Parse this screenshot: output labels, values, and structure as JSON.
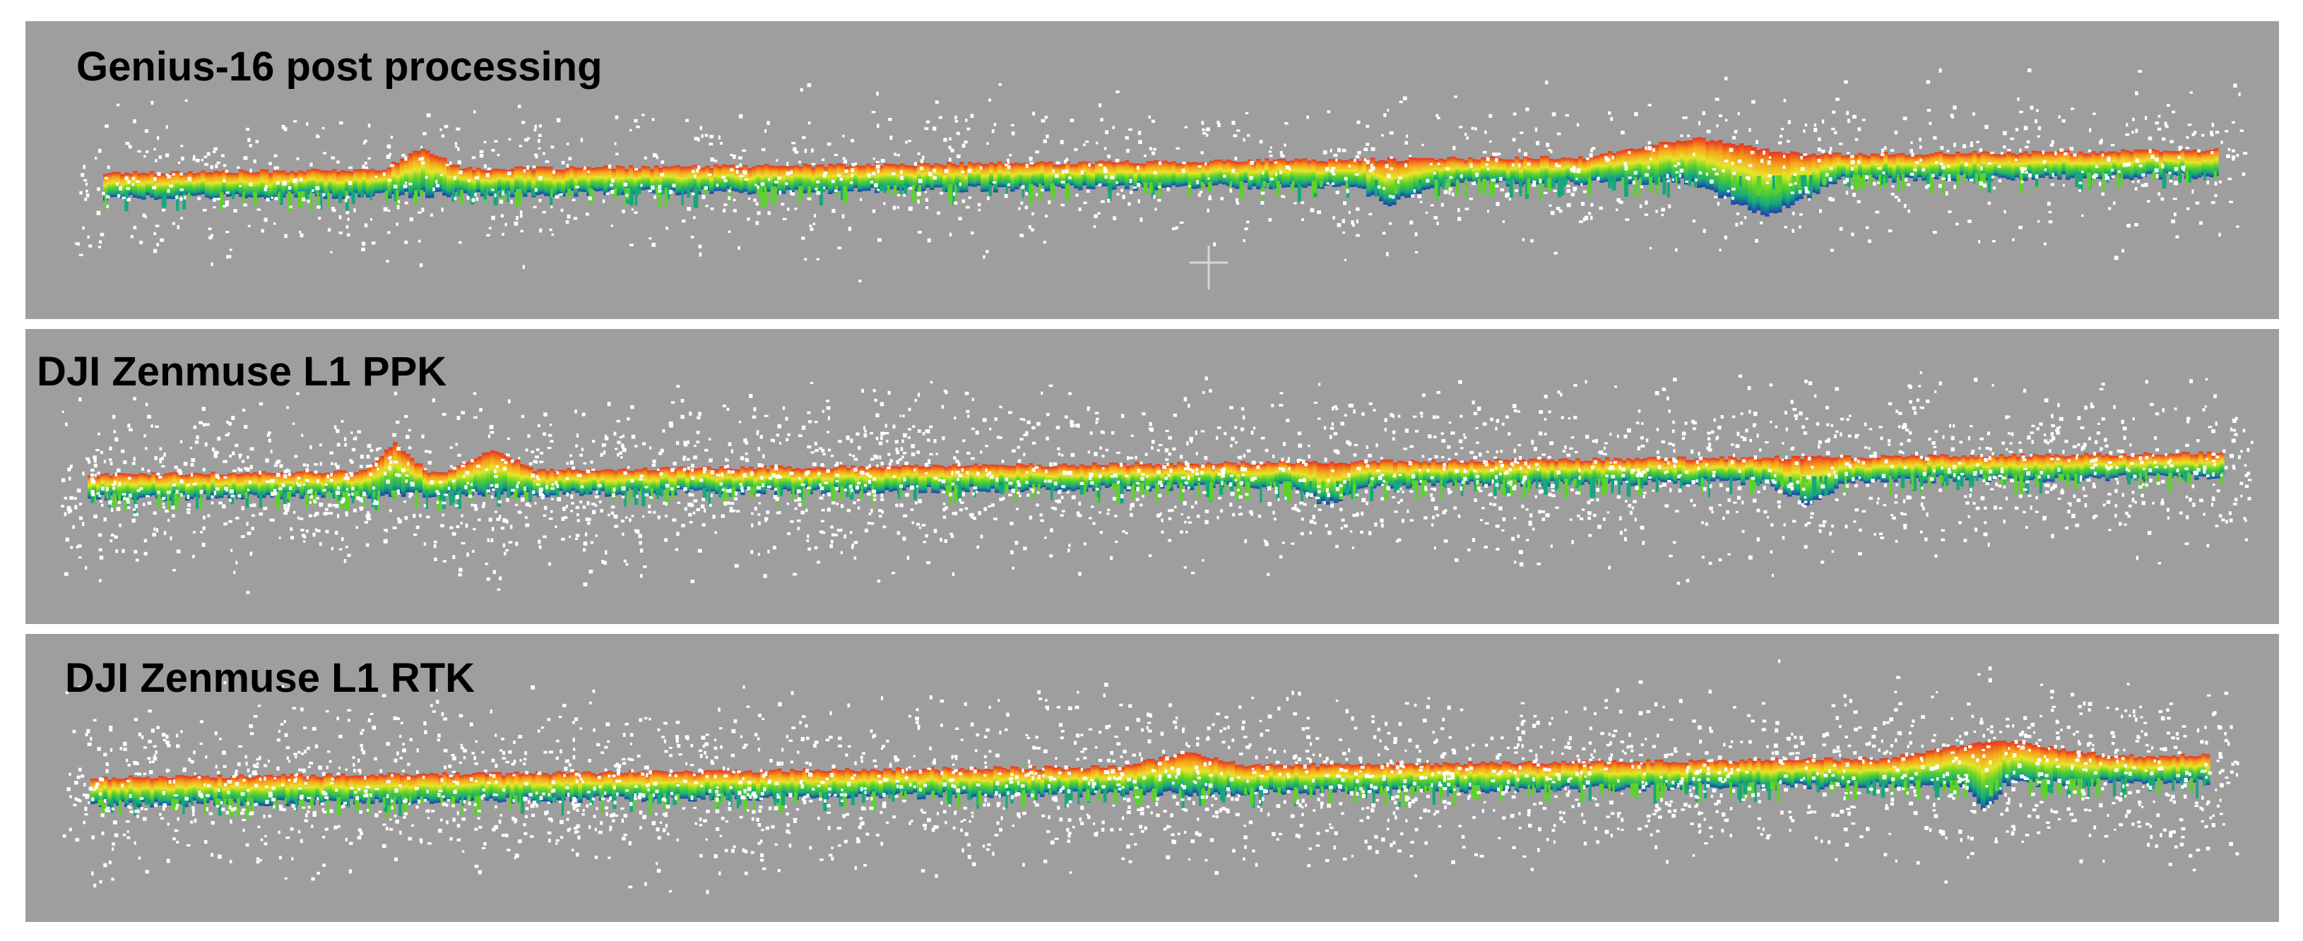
{
  "panels": [
    {
      "label": "Genius-16 post processing"
    },
    {
      "label": "DJI Zenmuse L1 PPK"
    },
    {
      "label": "DJI Zenmuse L1 RTK"
    }
  ],
  "colors": {
    "panel_background": "#9e9e9e",
    "figure_background": "#ffffff",
    "noise_points": "#ffffff",
    "ground_high": "#e8321e",
    "ground_mid_high": "#f5a41c",
    "ground_mid": "#e6e62a",
    "ground_mid_low": "#5dd22a",
    "ground_low": "#16a87a",
    "ground_lowest": "#1a3fb0",
    "crosshair": "#d8d8d8"
  },
  "icons": [
    "crosshair-icon"
  ]
}
